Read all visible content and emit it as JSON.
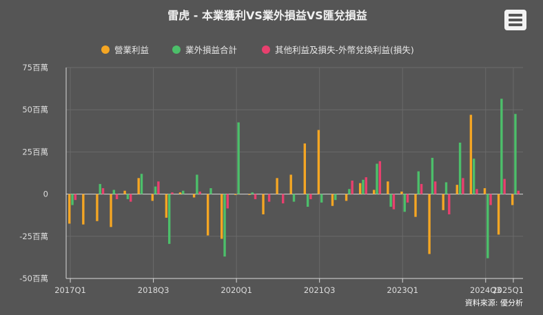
{
  "chart_data": {
    "type": "bar",
    "title": "雷虎 - 本業獲利VS業外損益VS匯兌損益",
    "ylabel": "",
    "xlabel": "",
    "y_ticks": [
      "75百萬",
      "50百萬",
      "25百萬",
      "0",
      "-25百萬",
      "-50百萬"
    ],
    "y_tick_values": [
      75,
      50,
      25,
      0,
      -25,
      -50
    ],
    "ylim": [
      -50,
      75
    ],
    "x_tick_labels": [
      "2017Q1",
      "2018Q3",
      "2020Q1",
      "2021Q3",
      "2023Q1",
      "2024Q3",
      "2025Q1"
    ],
    "x_tick_indices": [
      0,
      6,
      12,
      18,
      24,
      30,
      32
    ],
    "categories": [
      "2017Q1",
      "2017Q2",
      "2017Q3",
      "2017Q4",
      "2018Q1",
      "2018Q2",
      "2018Q3",
      "2018Q4",
      "2019Q1",
      "2019Q2",
      "2019Q3",
      "2019Q4",
      "2020Q1",
      "2020Q2",
      "2020Q3",
      "2020Q4",
      "2021Q1",
      "2021Q2",
      "2021Q3",
      "2021Q4",
      "2022Q1",
      "2022Q2",
      "2022Q3",
      "2022Q4",
      "2023Q1",
      "2023Q2",
      "2023Q3",
      "2023Q4",
      "2024Q1",
      "2024Q2",
      "2024Q3",
      "2024Q4",
      "2025Q1"
    ],
    "series": [
      {
        "name": "營業利益",
        "color": "#f5a623",
        "values": [
          -17.5,
          -18,
          -16,
          -19.5,
          2,
          9.5,
          -4,
          -14,
          1,
          -2,
          -24.5,
          -26.5,
          -0.5,
          -0.5,
          -12,
          9.5,
          11.5,
          30,
          38,
          -7,
          -4,
          6.5,
          2.5,
          7.5,
          1.5,
          -13.5,
          -35.5,
          -9.5,
          5.5,
          47,
          3.5,
          -24,
          -6.5
        ]
      },
      {
        "name": "業外損益合計",
        "color": "#4cbf6a",
        "values": [
          -6.5,
          0,
          6,
          2.5,
          -3,
          12,
          4.5,
          -29.5,
          2,
          11.5,
          3.5,
          -37,
          42.5,
          1,
          0,
          0,
          -4.5,
          -7.5,
          -5,
          -3.5,
          3,
          8.5,
          18,
          -7.5,
          -10.5,
          13.5,
          21.5,
          7,
          30.5,
          21,
          -38,
          56.5,
          47.5
        ]
      },
      {
        "name": "其他利益及損失-外幣兌換利益(損失)",
        "color": "#e8406e",
        "values": [
          -3.5,
          0,
          3.5,
          -3,
          -4.5,
          0,
          7.5,
          1,
          0,
          1.5,
          0,
          -8.5,
          0,
          -3,
          -4.5,
          -5.5,
          0,
          -3,
          0,
          0,
          8,
          10,
          19.5,
          -9,
          -5,
          6,
          7.5,
          -12,
          9.5,
          3,
          -6.5,
          9,
          2
        ]
      }
    ],
    "legend_position": "top-center",
    "grid": true,
    "credit": "資料來源: 優分析"
  },
  "menu_icon": "hamburger-menu-icon"
}
